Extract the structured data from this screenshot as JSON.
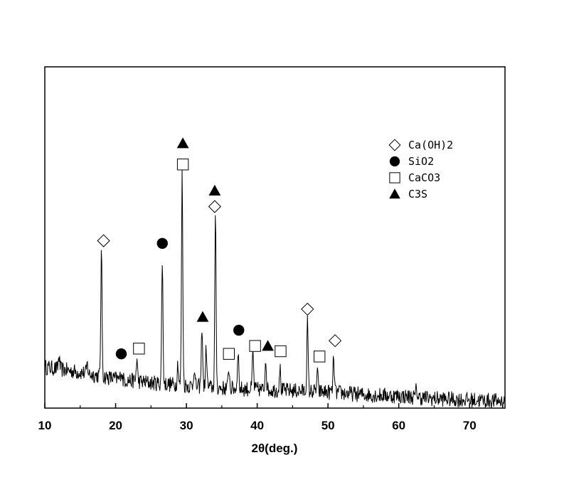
{
  "chart_data": {
    "type": "line",
    "title": "",
    "xlabel": "2θ(deg.)",
    "ylabel": "",
    "xlim": [
      10,
      75
    ],
    "ylim": [
      0,
      100
    ],
    "xticks": [
      10,
      20,
      30,
      40,
      50,
      60,
      70
    ],
    "y_ticks_shown": false,
    "grid": false,
    "legend_position": "top-right",
    "legend": [
      {
        "label": "Ca(OH)2",
        "marker": "diamond-open"
      },
      {
        "label": "SiO2",
        "marker": "circle-filled"
      },
      {
        "label": "CaCO3",
        "marker": "square-open"
      },
      {
        "label": "C3S",
        "marker": "triangle-filled"
      }
    ],
    "series": [
      {
        "baseline": [
          [
            10,
            14
          ],
          [
            15,
            12
          ],
          [
            20,
            9.5
          ],
          [
            25,
            8
          ],
          [
            30,
            7
          ],
          [
            35,
            6
          ],
          [
            40,
            5.5
          ],
          [
            45,
            5
          ],
          [
            50,
            4.5
          ],
          [
            55,
            3.5
          ],
          [
            60,
            3
          ],
          [
            65,
            2
          ],
          [
            70,
            1.5
          ],
          [
            75,
            1
          ]
        ],
        "peaks": [
          {
            "x": 12.0,
            "y": 18
          },
          {
            "x": 16.0,
            "y": 15
          },
          {
            "x": 18.0,
            "y": 58
          },
          {
            "x": 20.8,
            "y": 13
          },
          {
            "x": 23.0,
            "y": 17
          },
          {
            "x": 26.6,
            "y": 55
          },
          {
            "x": 28.8,
            "y": 16
          },
          {
            "x": 29.4,
            "y": 88
          },
          {
            "x": 31.1,
            "y": 14
          },
          {
            "x": 32.2,
            "y": 30
          },
          {
            "x": 32.8,
            "y": 22
          },
          {
            "x": 34.1,
            "y": 71
          },
          {
            "x": 36.0,
            "y": 14
          },
          {
            "x": 37.3,
            "y": 21
          },
          {
            "x": 39.4,
            "y": 20
          },
          {
            "x": 41.2,
            "y": 18
          },
          {
            "x": 43.2,
            "y": 14
          },
          {
            "x": 47.1,
            "y": 31
          },
          {
            "x": 48.5,
            "y": 12
          },
          {
            "x": 50.8,
            "y": 18
          },
          {
            "x": 62.5,
            "y": 6
          }
        ]
      }
    ],
    "annotations": [
      {
        "marker": "diamond-open",
        "x": 18.3,
        "y": 62
      },
      {
        "marker": "circle-filled",
        "x": 20.8,
        "y": 19
      },
      {
        "marker": "square-open",
        "x": 23.3,
        "y": 21
      },
      {
        "marker": "circle-filled",
        "x": 26.6,
        "y": 61
      },
      {
        "marker": "square-open",
        "x": 29.5,
        "y": 91
      },
      {
        "marker": "triangle-filled",
        "x": 29.5,
        "y": 99
      },
      {
        "marker": "triangle-filled",
        "x": 32.3,
        "y": 33
      },
      {
        "marker": "diamond-open",
        "x": 34.0,
        "y": 75
      },
      {
        "marker": "triangle-filled",
        "x": 34.0,
        "y": 81
      },
      {
        "marker": "square-open",
        "x": 36.0,
        "y": 19
      },
      {
        "marker": "circle-filled",
        "x": 37.4,
        "y": 28
      },
      {
        "marker": "square-open",
        "x": 39.7,
        "y": 22
      },
      {
        "marker": "triangle-filled",
        "x": 41.5,
        "y": 22
      },
      {
        "marker": "square-open",
        "x": 43.3,
        "y": 20
      },
      {
        "marker": "diamond-open",
        "x": 47.1,
        "y": 36
      },
      {
        "marker": "square-open",
        "x": 48.8,
        "y": 18
      },
      {
        "marker": "diamond-open",
        "x": 51.0,
        "y": 24
      }
    ]
  }
}
